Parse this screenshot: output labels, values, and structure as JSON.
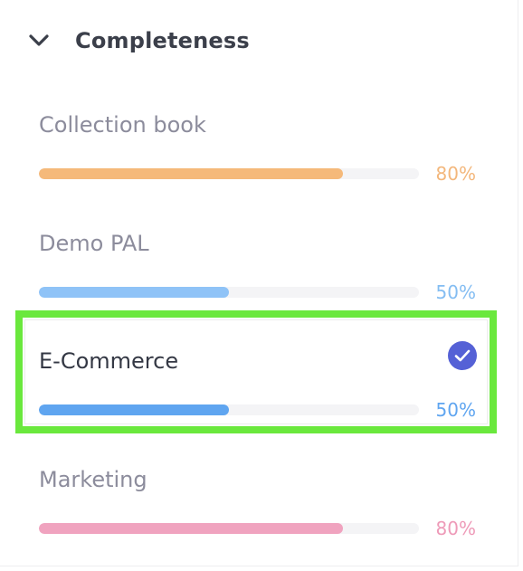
{
  "section": {
    "title": "Completeness",
    "chevron_icon": "chevron-down-icon"
  },
  "items": [
    {
      "label": "Collection book",
      "percent_text": "80%",
      "progress": 0.8,
      "color": "#f5b97a",
      "pct_color": "#f3b77c",
      "selected": false
    },
    {
      "label": "Demo PAL",
      "percent_text": "50%",
      "progress": 0.5,
      "color": "#8fc3f7",
      "pct_color": "#84bdf2",
      "selected": false
    },
    {
      "label": "E-Commerce",
      "percent_text": "50%",
      "progress": 0.5,
      "color": "#5fa5f0",
      "pct_color": "#5fa5f0",
      "selected": true,
      "selected_icon": "checkmark-circle-icon"
    },
    {
      "label": "Marketing",
      "percent_text": "80%",
      "progress": 0.8,
      "color": "#f0a3bf",
      "pct_color": "#ee9ab8",
      "selected": false
    }
  ],
  "colors": {
    "highlight": "#6ae83d",
    "check_bg": "#5561d6"
  }
}
